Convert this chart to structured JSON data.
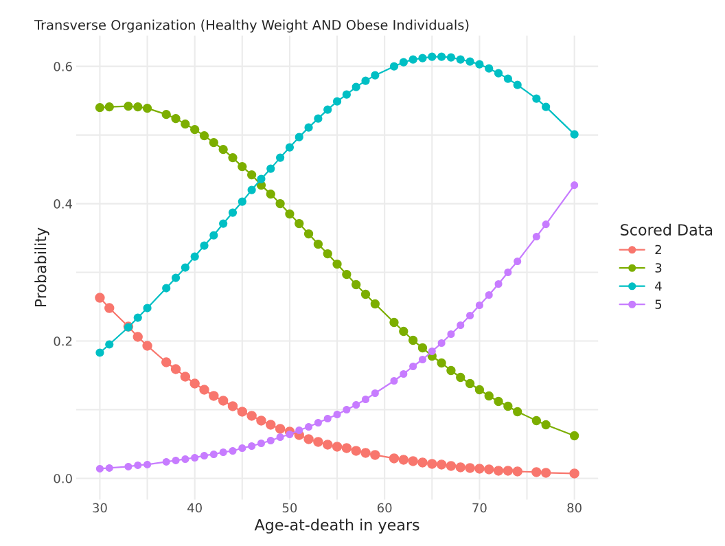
{
  "chart_data": {
    "type": "line",
    "title": "Transverse Organization (Healthy Weight AND Obese Individuals)",
    "xlabel": "Age-at-death in years",
    "ylabel": "Probability",
    "legend_title": "Scored Data",
    "x": [
      30,
      31,
      33,
      34,
      35,
      37,
      38,
      39,
      40,
      41,
      42,
      43,
      44,
      45,
      46,
      47,
      48,
      49,
      50,
      51,
      52,
      53,
      54,
      55,
      56,
      57,
      58,
      59,
      61,
      62,
      63,
      64,
      65,
      66,
      67,
      68,
      69,
      70,
      71,
      72,
      73,
      74,
      76,
      77,
      80
    ],
    "series": [
      {
        "name": "2",
        "color": "#f8766d",
        "values": [
          0.263,
          0.248,
          0.221,
          0.206,
          0.193,
          0.169,
          0.159,
          0.148,
          0.138,
          0.129,
          0.12,
          0.113,
          0.105,
          0.097,
          0.091,
          0.084,
          0.078,
          0.072,
          0.068,
          0.063,
          0.057,
          0.053,
          0.049,
          0.046,
          0.044,
          0.04,
          0.037,
          0.034,
          0.029,
          0.027,
          0.025,
          0.023,
          0.021,
          0.02,
          0.018,
          0.016,
          0.015,
          0.014,
          0.013,
          0.011,
          0.011,
          0.01,
          0.009,
          0.008,
          0.007
        ]
      },
      {
        "name": "3",
        "color": "#7cae00",
        "values": [
          0.54,
          0.541,
          0.542,
          0.541,
          0.539,
          0.53,
          0.524,
          0.516,
          0.508,
          0.499,
          0.489,
          0.479,
          0.467,
          0.454,
          0.442,
          0.427,
          0.414,
          0.4,
          0.385,
          0.371,
          0.356,
          0.341,
          0.327,
          0.312,
          0.297,
          0.282,
          0.268,
          0.254,
          0.227,
          0.214,
          0.201,
          0.19,
          0.178,
          0.168,
          0.157,
          0.147,
          0.138,
          0.129,
          0.12,
          0.112,
          0.105,
          0.097,
          0.084,
          0.078,
          0.062
        ]
      },
      {
        "name": "4",
        "color": "#00bfc4",
        "values": [
          0.183,
          0.195,
          0.22,
          0.234,
          0.248,
          0.277,
          0.292,
          0.307,
          0.323,
          0.339,
          0.354,
          0.371,
          0.387,
          0.403,
          0.42,
          0.436,
          0.451,
          0.467,
          0.482,
          0.497,
          0.511,
          0.524,
          0.537,
          0.549,
          0.559,
          0.57,
          0.579,
          0.587,
          0.6,
          0.606,
          0.61,
          0.612,
          0.614,
          0.614,
          0.613,
          0.61,
          0.607,
          0.603,
          0.597,
          0.59,
          0.582,
          0.573,
          0.553,
          0.541,
          0.501
        ]
      },
      {
        "name": "5",
        "color": "#c77cff",
        "values": [
          0.014,
          0.015,
          0.017,
          0.019,
          0.02,
          0.024,
          0.026,
          0.028,
          0.03,
          0.033,
          0.035,
          0.038,
          0.04,
          0.044,
          0.047,
          0.051,
          0.055,
          0.06,
          0.064,
          0.07,
          0.075,
          0.081,
          0.087,
          0.093,
          0.1,
          0.107,
          0.115,
          0.124,
          0.142,
          0.152,
          0.163,
          0.173,
          0.185,
          0.197,
          0.21,
          0.223,
          0.237,
          0.252,
          0.267,
          0.283,
          0.3,
          0.316,
          0.352,
          0.37,
          0.427
        ]
      }
    ],
    "xlim": [
      27.5,
      82.5
    ],
    "ylim": [
      -0.031,
      0.645
    ],
    "xticks": [
      30,
      {
        "value": 35,
        "label": null
      },
      40,
      {
        "value": 45,
        "label": null
      },
      50,
      {
        "value": 55,
        "label": null
      },
      60,
      {
        "value": 65,
        "label": null
      },
      70,
      {
        "value": 75,
        "label": null
      },
      80
    ],
    "yticks": [
      {
        "value": 0,
        "label": "0.0"
      },
      {
        "value": 0.1,
        "label": null
      },
      {
        "value": 0.2,
        "label": "0.2"
      },
      {
        "value": 0.3,
        "label": null
      },
      {
        "value": 0.4,
        "label": "0.4"
      },
      {
        "value": 0.5,
        "label": null
      },
      {
        "value": 0.6,
        "label": "0.6"
      }
    ],
    "grid": true,
    "legend": "right",
    "marker": "circle",
    "line_style": "solid"
  }
}
